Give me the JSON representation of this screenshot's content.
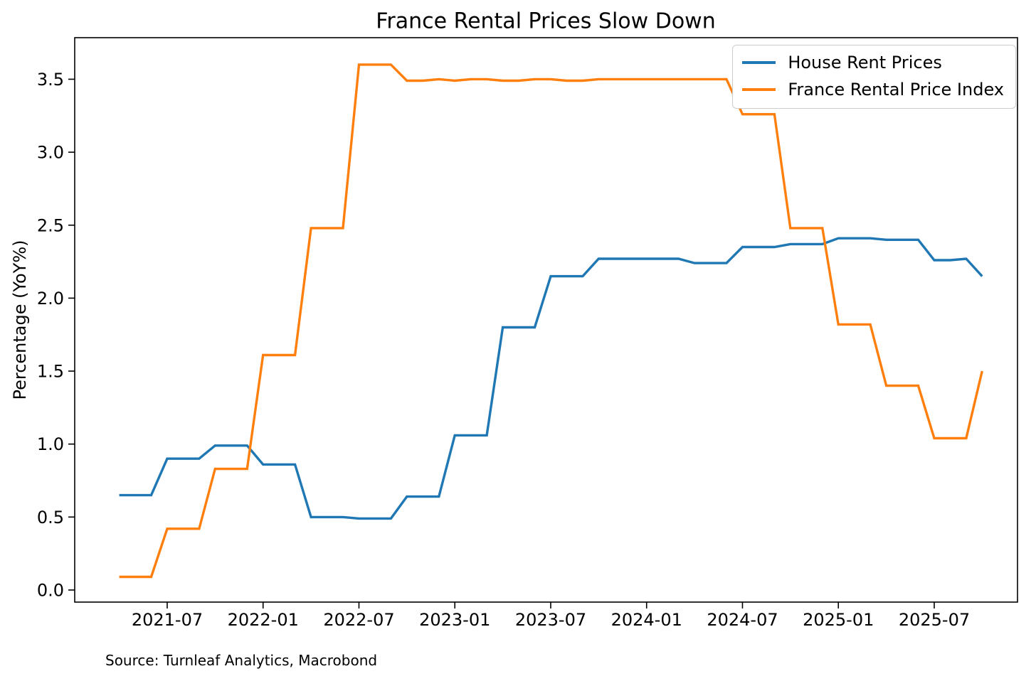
{
  "chart_data": {
    "type": "line",
    "title": "France Rental Prices Slow Down",
    "xlabel": "",
    "ylabel": "Percentage (YoY%)",
    "source": "Source: Turnleaf Analytics, Macrobond",
    "grid": false,
    "legend": {
      "position": "upper right"
    },
    "ylim": [
      -0.09,
      3.78
    ],
    "y_ticks": [
      "0.0",
      "0.5",
      "1.0",
      "1.5",
      "2.0",
      "2.5",
      "3.0",
      "3.5"
    ],
    "x_ticks": [
      "2021-07",
      "2022-01",
      "2022-07",
      "2023-01",
      "2023-07",
      "2024-01",
      "2024-07",
      "2025-01",
      "2025-07"
    ],
    "x": [
      "2021-04",
      "2021-05",
      "2021-06",
      "2021-07",
      "2021-08",
      "2021-09",
      "2021-10",
      "2021-11",
      "2021-12",
      "2022-01",
      "2022-02",
      "2022-03",
      "2022-04",
      "2022-05",
      "2022-06",
      "2022-07",
      "2022-08",
      "2022-09",
      "2022-10",
      "2022-11",
      "2022-12",
      "2023-01",
      "2023-02",
      "2023-03",
      "2023-04",
      "2023-05",
      "2023-06",
      "2023-07",
      "2023-08",
      "2023-09",
      "2023-10",
      "2023-11",
      "2023-12",
      "2024-01",
      "2024-02",
      "2024-03",
      "2024-04",
      "2024-05",
      "2024-06",
      "2024-07",
      "2024-08",
      "2024-09",
      "2024-10",
      "2024-11",
      "2024-12",
      "2025-01",
      "2025-02",
      "2025-03",
      "2025-04",
      "2025-05",
      "2025-06",
      "2025-07",
      "2025-08",
      "2025-09",
      "2025-10"
    ],
    "series": [
      {
        "name": "House Rent Prices",
        "color": "#1f77b4",
        "values": [
          0.65,
          0.65,
          0.65,
          0.9,
          0.9,
          0.9,
          0.99,
          0.99,
          0.99,
          0.86,
          0.86,
          0.86,
          0.5,
          0.5,
          0.5,
          0.49,
          0.49,
          0.49,
          0.64,
          0.64,
          0.64,
          1.06,
          1.06,
          1.06,
          1.8,
          1.8,
          1.8,
          2.15,
          2.15,
          2.15,
          2.27,
          2.27,
          2.27,
          2.27,
          2.27,
          2.27,
          2.24,
          2.24,
          2.24,
          2.35,
          2.35,
          2.35,
          2.37,
          2.37,
          2.37,
          2.41,
          2.41,
          2.41,
          2.4,
          2.4,
          2.4,
          2.26,
          2.26,
          2.27,
          2.15
        ]
      },
      {
        "name": "France Rental Price Index",
        "color": "#ff7f0e",
        "values": [
          0.09,
          0.09,
          0.09,
          0.42,
          0.42,
          0.42,
          0.83,
          0.83,
          0.83,
          1.61,
          1.61,
          1.61,
          2.48,
          2.48,
          2.48,
          3.6,
          3.6,
          3.6,
          3.49,
          3.49,
          3.5,
          3.49,
          3.5,
          3.5,
          3.49,
          3.49,
          3.5,
          3.5,
          3.49,
          3.49,
          3.5,
          3.5,
          3.5,
          3.5,
          3.5,
          3.5,
          3.5,
          3.5,
          3.5,
          3.26,
          3.26,
          3.26,
          2.48,
          2.48,
          2.48,
          1.82,
          1.82,
          1.82,
          1.4,
          1.4,
          1.4,
          1.04,
          1.04,
          1.04,
          1.5
        ]
      }
    ]
  }
}
